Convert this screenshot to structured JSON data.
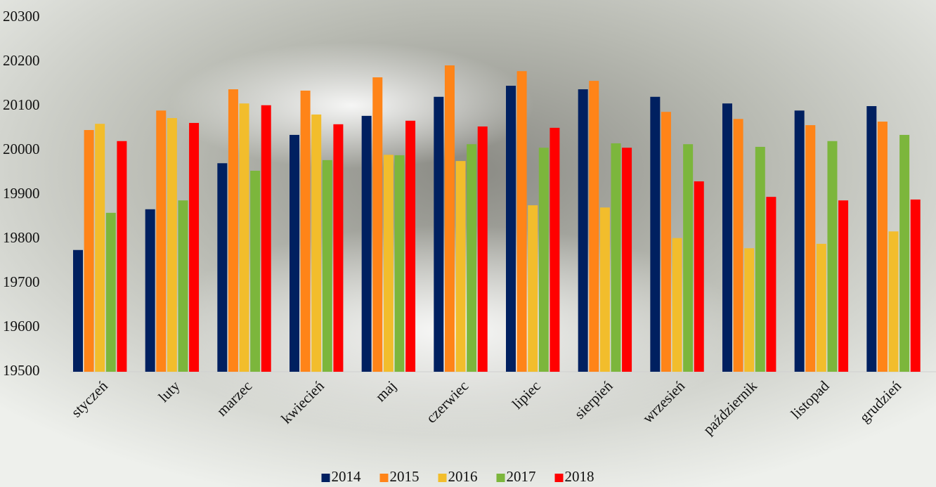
{
  "chart_data": {
    "type": "bar",
    "categories": [
      "styczeń",
      "luty",
      "marzec",
      "kwiecień",
      "maj",
      "czerwiec",
      "lipiec",
      "sierpień",
      "wrzesień",
      "październik",
      "listopad",
      "grudzień"
    ],
    "series": [
      {
        "name": "2014",
        "color": "#002060",
        "values": [
          19775,
          19867,
          19971,
          20035,
          20078,
          20121,
          20146,
          20138,
          20121,
          20106,
          20090,
          20100
        ]
      },
      {
        "name": "2015",
        "color": "#ff8418",
        "values": [
          20046,
          20090,
          20138,
          20135,
          20165,
          20192,
          20179,
          20157,
          20087,
          20071,
          20057,
          20065
        ]
      },
      {
        "name": "2016",
        "color": "#f2bd2c",
        "values": [
          20060,
          20073,
          20106,
          20081,
          19990,
          19976,
          19876,
          19871,
          19802,
          19779,
          19789,
          19817
        ]
      },
      {
        "name": "2017",
        "color": "#7cb63c",
        "values": [
          19859,
          19887,
          19954,
          19978,
          19989,
          20014,
          20006,
          20016,
          20014,
          20008,
          20021,
          20035
        ]
      },
      {
        "name": "2018",
        "color": "#ff0000",
        "values": [
          20021,
          20062,
          20102,
          20059,
          20067,
          20054,
          20051,
          20006,
          19930,
          19895,
          19887,
          19889
        ]
      }
    ],
    "ylim": [
      19500,
      20300
    ],
    "yticks": [
      19500,
      19600,
      19700,
      19800,
      19900,
      20000,
      20100,
      20200,
      20300
    ],
    "grid": false
  }
}
